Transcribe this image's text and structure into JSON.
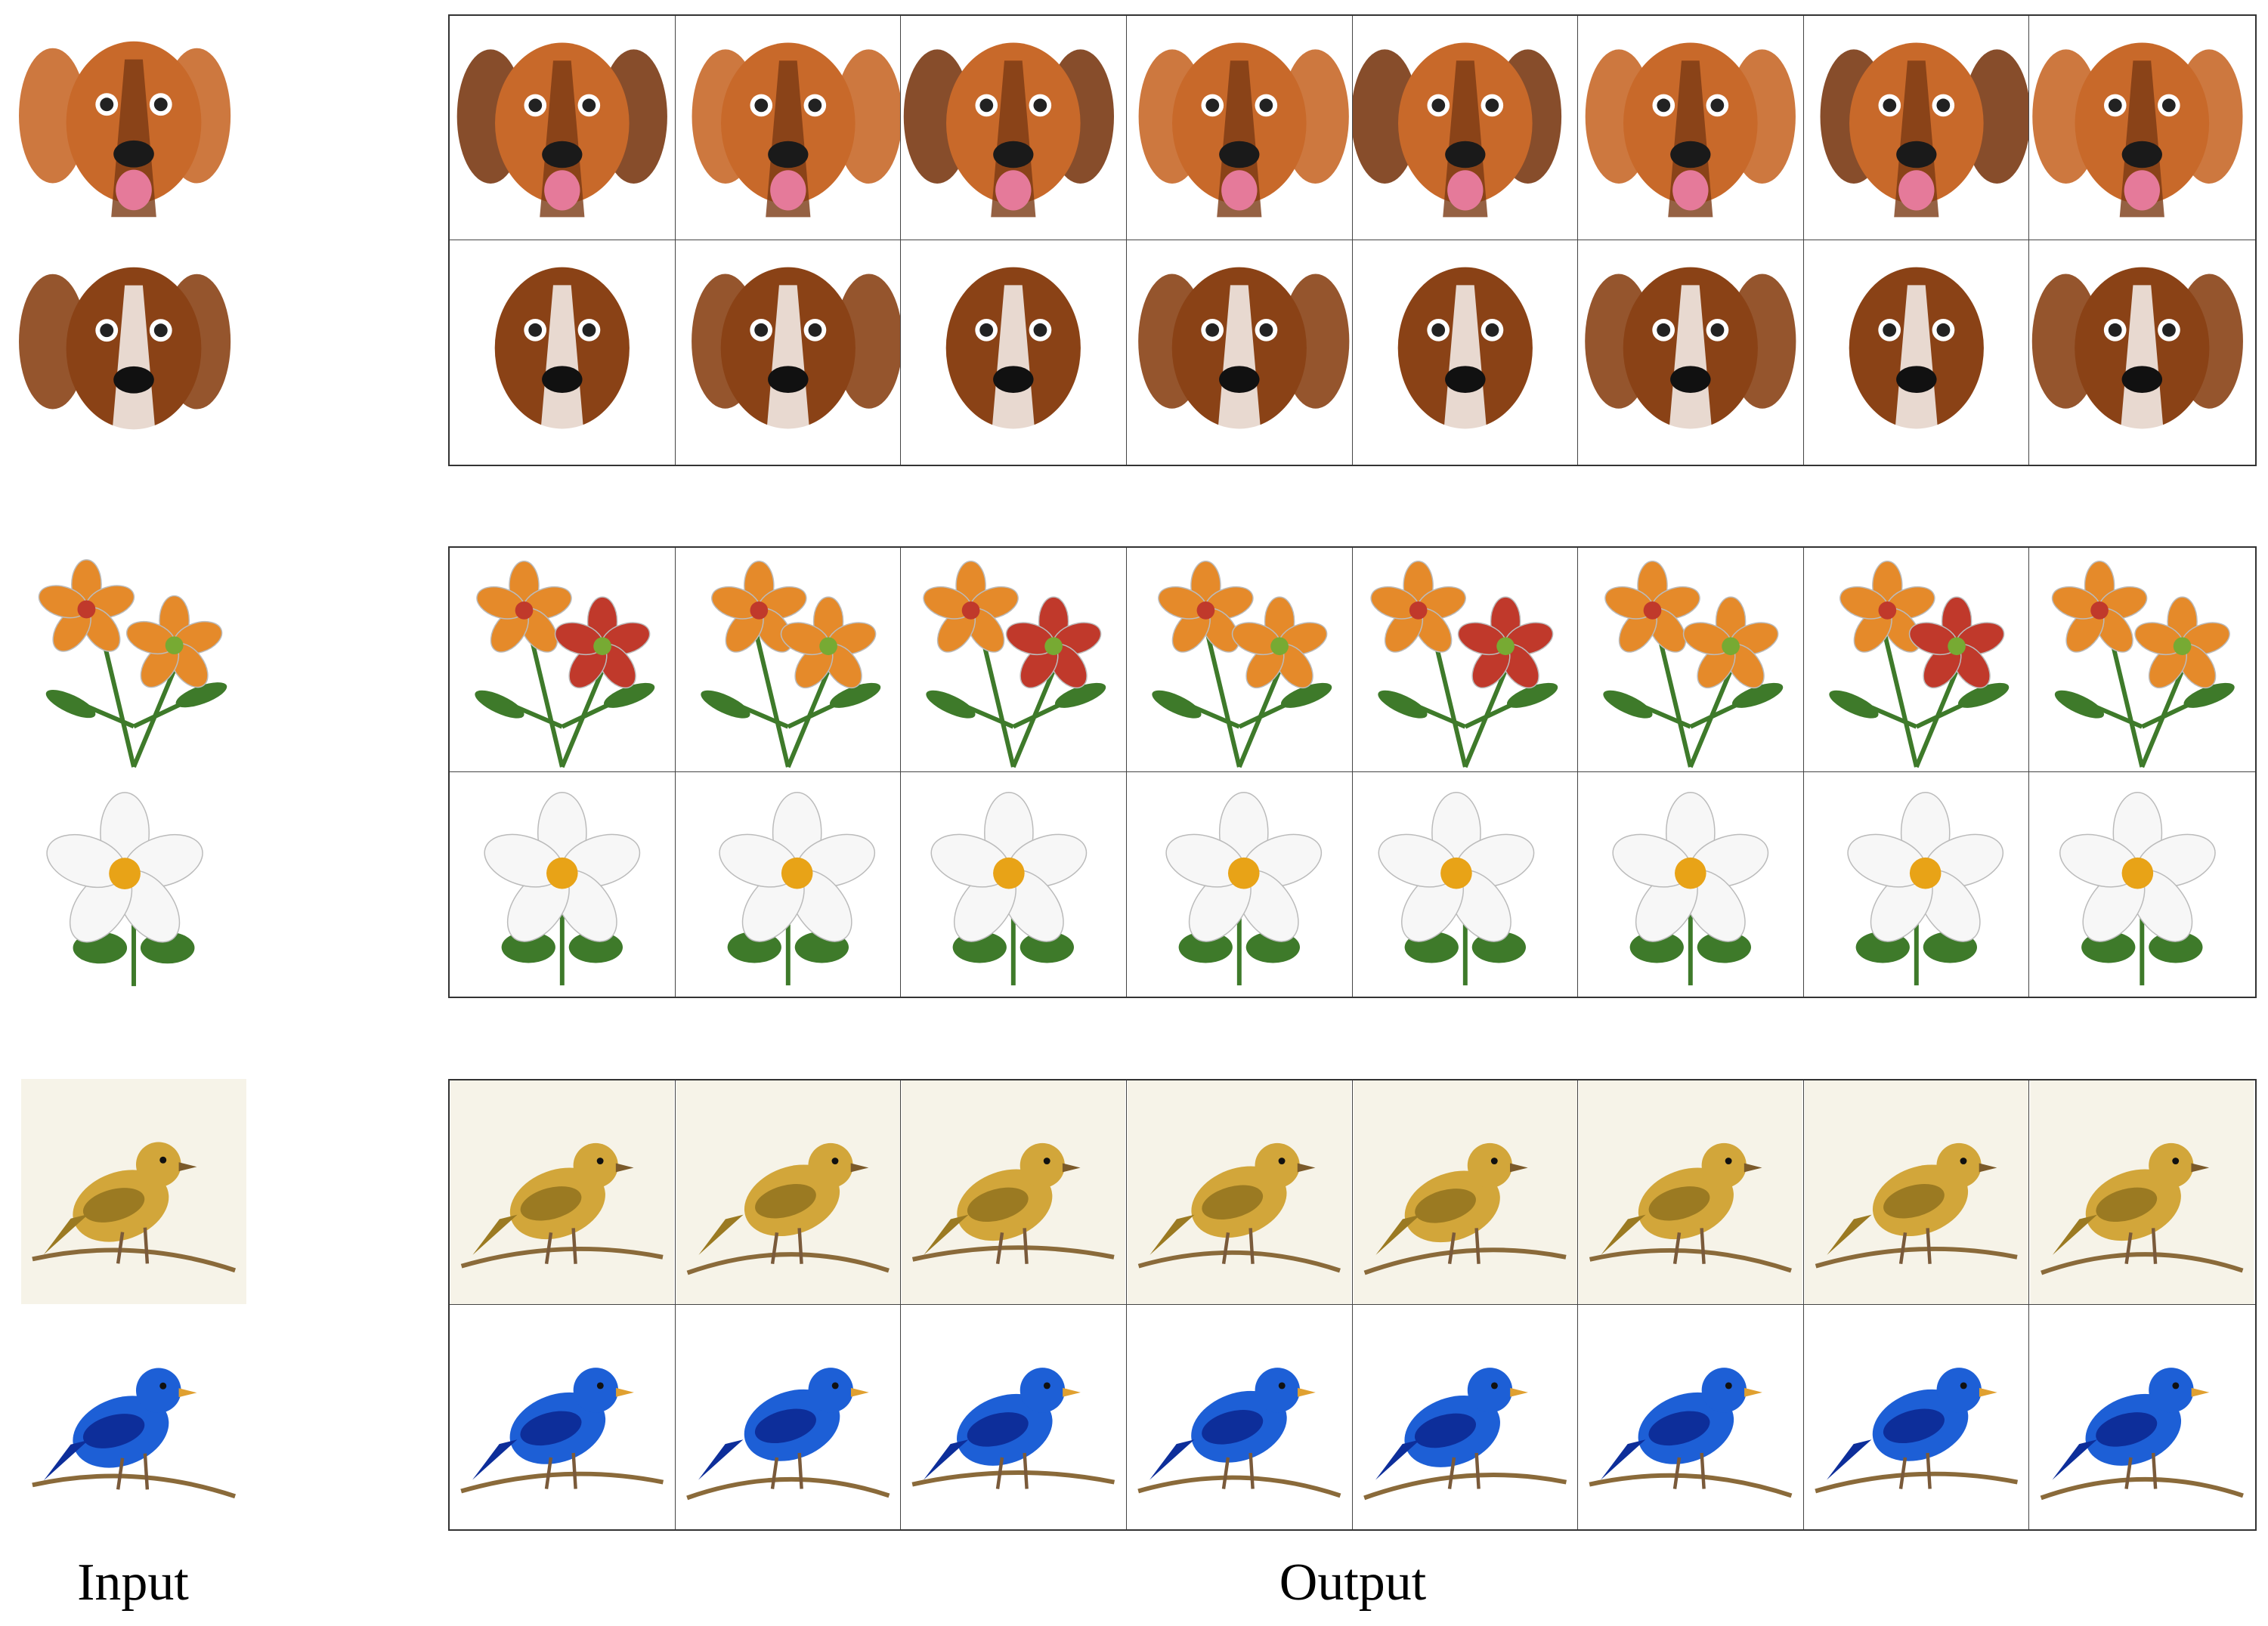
{
  "labels": {
    "input": "Input",
    "output": "Output"
  },
  "groups": [
    {
      "subject": "dog",
      "rows": [
        {
          "kind": "dog",
          "main": "#c8692a",
          "accent": "#7a3a14",
          "bg": "#ffffff",
          "nose": "#1a1a1a"
        },
        {
          "kind": "dog",
          "main": "#8a4216",
          "accent": "#ffffff",
          "bg": "#ffffff",
          "nose": "#111111"
        }
      ]
    },
    {
      "subject": "flower",
      "rows": [
        {
          "kind": "flower",
          "main": "#e58a2a",
          "accent": "#c0392b",
          "bg": "#ffffff",
          "nose": "#3e7a2a"
        },
        {
          "kind": "flower",
          "main": "#f7f7f7",
          "accent": "#e8a317",
          "bg": "#ffffff",
          "nose": "#3e7a2a"
        }
      ]
    },
    {
      "subject": "bird",
      "rows": [
        {
          "kind": "bird",
          "main": "#d2a63a",
          "accent": "#9b7a22",
          "bg": "#f6f3e8",
          "nose": "#7b5a2a"
        },
        {
          "kind": "bird",
          "main": "#1d5fd6",
          "accent": "#0d2e9a",
          "bg": "#ffffff",
          "nose": "#e0a030"
        }
      ]
    }
  ]
}
